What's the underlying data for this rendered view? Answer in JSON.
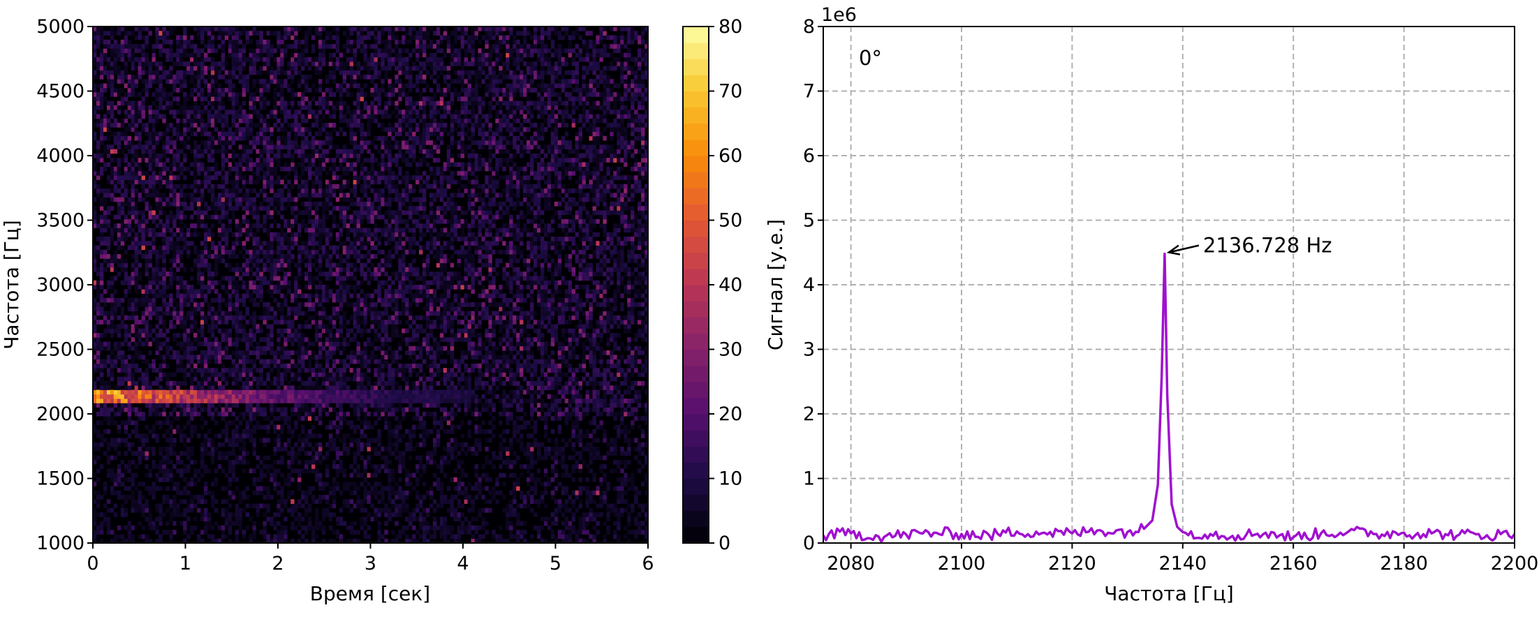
{
  "chart_data": [
    {
      "type": "heatmap",
      "title": "",
      "xlabel": "Время [сек]",
      "ylabel": "Частота [Гц]",
      "xlim": [
        0,
        6
      ],
      "ylim": [
        1000,
        5000
      ],
      "xticks": [
        "0",
        "1",
        "2",
        "3",
        "4",
        "5",
        "6"
      ],
      "yticks": [
        "1000",
        "1500",
        "2000",
        "2500",
        "3000",
        "3500",
        "4000",
        "4500",
        "5000"
      ],
      "colormap": "inferno",
      "colorbar": {
        "range": [
          0,
          80
        ],
        "ticks": [
          "0",
          "10",
          "20",
          "30",
          "40",
          "50",
          "60",
          "70",
          "80"
        ]
      },
      "features": {
        "noise_level": 5,
        "tone_band_hz": [
          2085,
          2175
        ],
        "tone_intensity_start": 80,
        "tone_end_time_s": 4.1
      }
    },
    {
      "type": "line",
      "title": "",
      "xlabel": "Частота [Гц]",
      "ylabel": "Сигнал [у.е.]",
      "y_multiplier_label": "1e6",
      "xlim": [
        2075,
        2200
      ],
      "ylim": [
        0,
        8
      ],
      "xticks": [
        "2080",
        "2100",
        "2120",
        "2140",
        "2160",
        "2180",
        "2200"
      ],
      "yticks": [
        "0",
        "1",
        "2",
        "3",
        "4",
        "5",
        "6",
        "7",
        "8"
      ],
      "grid": true,
      "line_color": "#a010d0",
      "corner_label": "0°",
      "annotation": {
        "text": "2136.728 Hz",
        "x": 2136.728,
        "y": 4.48
      },
      "series": [
        {
          "x": [
            2075,
            2080,
            2085,
            2090,
            2095,
            2100,
            2105,
            2110,
            2115,
            2120,
            2125,
            2130,
            2133,
            2134.5,
            2135.5,
            2136.2,
            2136.728,
            2137.2,
            2138,
            2139,
            2140,
            2145,
            2150,
            2155,
            2160,
            2165,
            2170,
            2175,
            2180,
            2185,
            2190,
            2195,
            2200
          ],
          "y": [
            0.12,
            0.15,
            0.1,
            0.13,
            0.16,
            0.14,
            0.12,
            0.18,
            0.16,
            0.15,
            0.2,
            0.17,
            0.22,
            0.35,
            0.9,
            2.6,
            4.48,
            2.3,
            0.6,
            0.25,
            0.17,
            0.14,
            0.12,
            0.16,
            0.09,
            0.15,
            0.18,
            0.14,
            0.16,
            0.15,
            0.13,
            0.12,
            0.14
          ]
        }
      ]
    }
  ]
}
